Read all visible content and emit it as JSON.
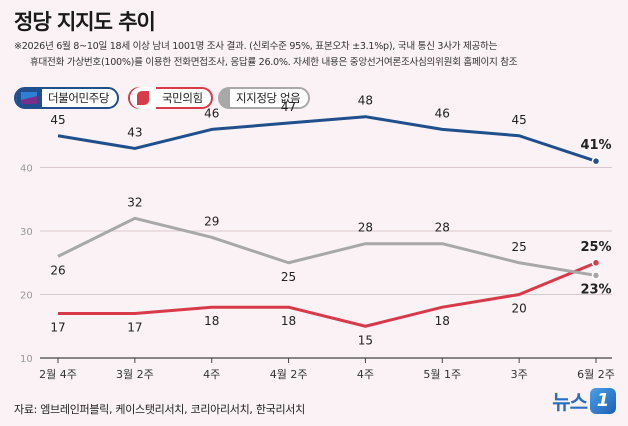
{
  "title": "정당 지지도 추이",
  "note_line1": "※2026년 6월 8~10일 18세 이상 남녀 1001명 조사 결과. (신뢰수준 95%, 표본오차 ±3.1%p), 국내 통신 3사가 제공하는",
  "note_line2": "휴대전화 가상번호(100%)를 이용한 전화면접조사, 응답률 26.0%. 자세한 내용은 중앙선거여론조사심의위원회 홈페이지 참조",
  "source": "자료: 엠브레인퍼블릭, 케이스탯리서치, 코리아리서치, 한국리서치",
  "brand": {
    "text": "뉴스",
    "badge": "1"
  },
  "colors": {
    "democratic": "#1f4f8c",
    "ppp": "#d93a4a",
    "none": "#a8a8a8",
    "grid": "#d9c9cd"
  },
  "chart_data": {
    "type": "line",
    "categories": [
      "2월 4주",
      "3월 2주",
      "4주",
      "4월 2주",
      "4주",
      "5월 1주",
      "3주",
      "6월 2주"
    ],
    "ylim": [
      10,
      50
    ],
    "yticks": [
      10,
      20,
      30,
      40
    ],
    "ytick_labels": [
      "10",
      "20",
      "30",
      "40"
    ],
    "series": [
      {
        "name": "더불어민주당",
        "values": [
          45,
          43,
          46,
          47,
          48,
          46,
          45,
          41
        ],
        "labels": [
          "45",
          "43",
          "46",
          "47",
          "48",
          "46",
          "45",
          "41"
        ],
        "last_unit": "%"
      },
      {
        "name": "국민의힘",
        "values": [
          17,
          17,
          18,
          18,
          15,
          18,
          20,
          25
        ],
        "labels": [
          "17",
          "17",
          "18",
          "18",
          "15",
          "18",
          "20",
          "25"
        ],
        "last_unit": "%"
      },
      {
        "name": "지지정당 없음",
        "values": [
          26,
          32,
          29,
          25,
          28,
          28,
          25,
          23
        ],
        "labels": [
          "26",
          "32",
          "29",
          "25",
          "28",
          "28",
          "25",
          "23"
        ],
        "last_unit": "%"
      }
    ]
  }
}
